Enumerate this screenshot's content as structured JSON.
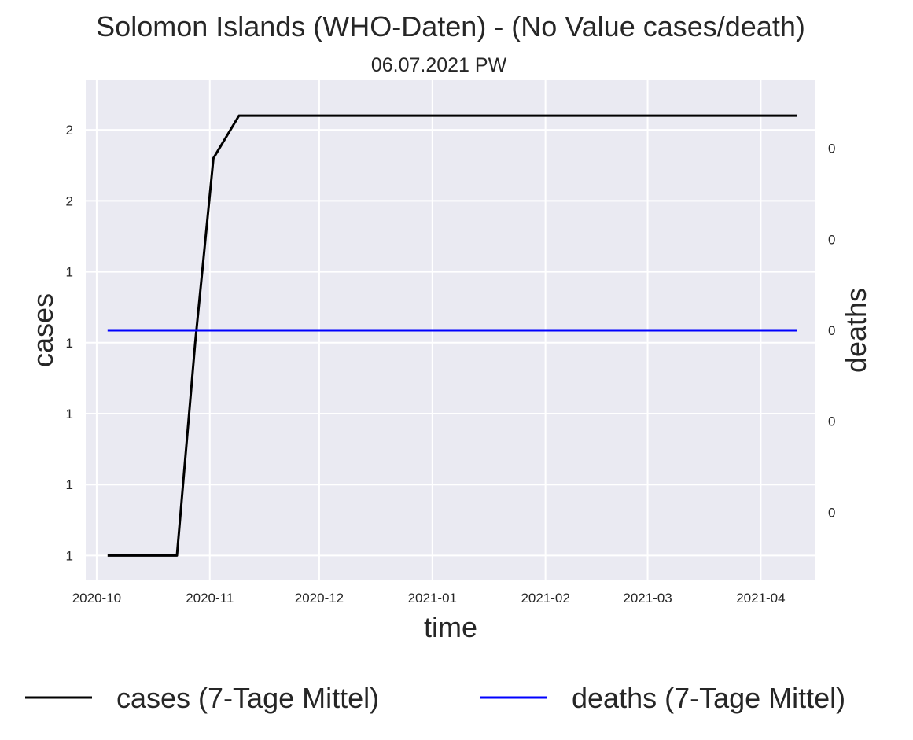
{
  "chart_data": {
    "type": "line",
    "title": "Solomon Islands (WHO-Daten) - (No Value cases/death)",
    "subtitle": "06.07.2021 PW",
    "xlabel": "time",
    "ylabel": "cases",
    "y2label": "deaths",
    "y2label_color": "#0000ff",
    "x_ticks": [
      "2020-10",
      "2020-11",
      "2020-12",
      "2021-01",
      "2021-02",
      "2021-03",
      "2021-04"
    ],
    "x_tick_dates": [
      "2020-10-01",
      "2020-11-01",
      "2020-12-01",
      "2021-01-01",
      "2021-02-01",
      "2021-03-01",
      "2021-04-01"
    ],
    "xlim": [
      "2020-09-28",
      "2021-04-16"
    ],
    "y_ticks": [
      {
        "value": 1.0,
        "label": "1"
      },
      {
        "value": 1.2,
        "label": "1"
      },
      {
        "value": 1.4,
        "label": "1"
      },
      {
        "value": 1.6,
        "label": "1"
      },
      {
        "value": 1.8,
        "label": "1"
      },
      {
        "value": 2.0,
        "label": "2"
      },
      {
        "value": 2.2,
        "label": "2"
      }
    ],
    "ylim": [
      0.93,
      2.34
    ],
    "y2_ticks": [
      {
        "value": -0.04,
        "label": "0"
      },
      {
        "value": -0.02,
        "label": "0"
      },
      {
        "value": 0.0,
        "label": "0"
      },
      {
        "value": 0.02,
        "label": "0"
      },
      {
        "value": 0.04,
        "label": "0"
      }
    ],
    "y2lim": [
      -0.055,
      0.055
    ],
    "grid": true,
    "legend_position": "bottom",
    "series": [
      {
        "name": "cases (7-Tage Mittel)",
        "axis": "left",
        "color": "#000000",
        "x": [
          "2020-10-04",
          "2020-10-23",
          "2020-10-28",
          "2020-11-02",
          "2020-11-09",
          "2021-04-11"
        ],
        "y": [
          1.0,
          1.0,
          1.6,
          2.12,
          2.24,
          2.24
        ]
      },
      {
        "name": "deaths (7-Tage Mittel)",
        "axis": "right",
        "color": "#0000ff",
        "x": [
          "2020-10-04",
          "2021-04-11"
        ],
        "y": [
          0.0,
          0.0
        ]
      }
    ]
  }
}
